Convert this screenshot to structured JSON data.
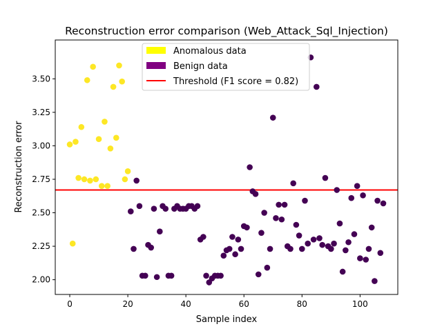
{
  "chart_data": {
    "type": "scatter",
    "title": "Reconstruction error comparison (Web_Attack_Sql_Injection)",
    "xlabel": "Sample index",
    "ylabel": "Reconstruction error",
    "xlim": [
      -5,
      113
    ],
    "ylim": [
      1.89,
      3.79
    ],
    "xticks": [
      "0",
      "20",
      "40",
      "60",
      "80",
      "100"
    ],
    "xtick_values": [
      0,
      20,
      40,
      60,
      80,
      100
    ],
    "yticks": [
      "2.00",
      "2.25",
      "2.50",
      "2.75",
      "3.00",
      "3.25",
      "3.50"
    ],
    "ytick_values": [
      2.0,
      2.25,
      2.5,
      2.75,
      3.0,
      3.25,
      3.5
    ],
    "grid": false,
    "legend_position": "upper-center",
    "threshold": {
      "name": "Threshold (F1 score = 0.82)",
      "value": 2.67,
      "color": "#ff0000"
    },
    "series": [
      {
        "name": "Anomalous data",
        "color": "#fde725",
        "points": [
          [
            0,
            3.01
          ],
          [
            1,
            2.27
          ],
          [
            2,
            3.03
          ],
          [
            3,
            2.76
          ],
          [
            4,
            3.14
          ],
          [
            5,
            2.75
          ],
          [
            6,
            3.49
          ],
          [
            7,
            2.74
          ],
          [
            8,
            3.59
          ],
          [
            9,
            2.75
          ],
          [
            10,
            3.05
          ],
          [
            11,
            2.7
          ],
          [
            12,
            3.18
          ],
          [
            13,
            2.7
          ],
          [
            14,
            2.98
          ],
          [
            15,
            3.44
          ],
          [
            16,
            3.06
          ],
          [
            17,
            3.6
          ],
          [
            18,
            3.48
          ],
          [
            19,
            2.75
          ],
          [
            20,
            2.81
          ]
        ]
      },
      {
        "name": "Benign data",
        "color": "#440154",
        "points": [
          [
            21,
            2.51
          ],
          [
            22,
            2.23
          ],
          [
            23,
            2.74
          ],
          [
            24,
            2.55
          ],
          [
            25,
            2.03
          ],
          [
            26,
            2.03
          ],
          [
            27,
            2.26
          ],
          [
            28,
            2.24
          ],
          [
            29,
            2.53
          ],
          [
            30,
            2.02
          ],
          [
            31,
            2.36
          ],
          [
            32,
            2.55
          ],
          [
            33,
            2.53
          ],
          [
            34,
            2.03
          ],
          [
            35,
            2.03
          ],
          [
            36,
            2.53
          ],
          [
            37,
            2.55
          ],
          [
            38,
            2.53
          ],
          [
            39,
            2.53
          ],
          [
            40,
            2.53
          ],
          [
            41,
            2.55
          ],
          [
            42,
            2.55
          ],
          [
            43,
            2.53
          ],
          [
            44,
            2.55
          ],
          [
            45,
            2.3
          ],
          [
            46,
            2.32
          ],
          [
            47,
            2.03
          ],
          [
            48,
            1.98
          ],
          [
            49,
            2.01
          ],
          [
            50,
            2.03
          ],
          [
            51,
            2.03
          ],
          [
            52,
            2.03
          ],
          [
            53,
            2.18
          ],
          [
            54,
            2.22
          ],
          [
            55,
            2.23
          ],
          [
            56,
            2.32
          ],
          [
            57,
            2.19
          ],
          [
            58,
            2.3
          ],
          [
            59,
            2.23
          ],
          [
            60,
            2.4
          ],
          [
            61,
            2.39
          ],
          [
            62,
            2.84
          ],
          [
            63,
            2.66
          ],
          [
            64,
            2.64
          ],
          [
            65,
            2.04
          ],
          [
            66,
            2.35
          ],
          [
            67,
            2.5
          ],
          [
            68,
            2.09
          ],
          [
            69,
            2.23
          ],
          [
            70,
            3.21
          ],
          [
            71,
            2.46
          ],
          [
            72,
            2.56
          ],
          [
            73,
            2.45
          ],
          [
            74,
            2.56
          ],
          [
            75,
            2.25
          ],
          [
            76,
            2.23
          ],
          [
            77,
            2.72
          ],
          [
            78,
            2.41
          ],
          [
            79,
            2.33
          ],
          [
            80,
            2.23
          ],
          [
            81,
            2.59
          ],
          [
            82,
            2.27
          ],
          [
            83,
            3.66
          ],
          [
            84,
            2.3
          ],
          [
            85,
            3.44
          ],
          [
            86,
            2.31
          ],
          [
            87,
            2.26
          ],
          [
            88,
            2.76
          ],
          [
            89,
            2.25
          ],
          [
            90,
            2.23
          ],
          [
            91,
            2.27
          ],
          [
            92,
            2.67
          ],
          [
            93,
            2.42
          ],
          [
            94,
            2.06
          ],
          [
            95,
            2.22
          ],
          [
            96,
            2.28
          ],
          [
            97,
            2.61
          ],
          [
            98,
            2.34
          ],
          [
            99,
            2.7
          ],
          [
            100,
            2.16
          ],
          [
            101,
            2.63
          ],
          [
            102,
            2.15
          ],
          [
            103,
            2.23
          ],
          [
            104,
            2.39
          ],
          [
            105,
            1.99
          ],
          [
            106,
            2.59
          ],
          [
            107,
            2.2
          ],
          [
            108,
            2.57
          ]
        ]
      }
    ]
  }
}
